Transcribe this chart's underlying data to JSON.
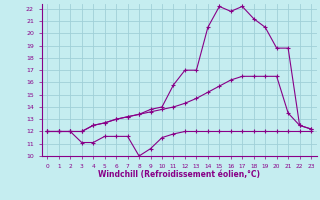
{
  "xlabel": "Windchill (Refroidissement éolien,°C)",
  "bg_color": "#c5edf0",
  "grid_color": "#a0d0d8",
  "line_color": "#880088",
  "xlim": [
    -0.5,
    23.5
  ],
  "ylim": [
    10,
    22.4
  ],
  "yticks": [
    10,
    11,
    12,
    13,
    14,
    15,
    16,
    17,
    18,
    19,
    20,
    21,
    22
  ],
  "xticks": [
    0,
    1,
    2,
    3,
    4,
    5,
    6,
    7,
    8,
    9,
    10,
    11,
    12,
    13,
    14,
    15,
    16,
    17,
    18,
    19,
    20,
    21,
    22,
    23
  ],
  "line1_x": [
    0,
    1,
    2,
    3,
    4,
    5,
    6,
    7,
    8,
    9,
    10,
    11,
    12,
    13,
    14,
    15,
    16,
    17,
    18,
    19,
    20,
    21,
    22,
    23
  ],
  "line1_y": [
    12.0,
    12.0,
    12.0,
    11.1,
    11.1,
    11.6,
    11.6,
    11.6,
    10.0,
    10.6,
    11.5,
    11.8,
    12.0,
    12.0,
    12.0,
    12.0,
    12.0,
    12.0,
    12.0,
    12.0,
    12.0,
    12.0,
    12.0,
    12.0
  ],
  "line2_x": [
    0,
    1,
    2,
    3,
    4,
    5,
    6,
    7,
    8,
    9,
    10,
    11,
    12,
    13,
    14,
    15,
    16,
    17,
    18,
    19,
    20,
    21,
    22,
    23
  ],
  "line2_y": [
    12.0,
    12.0,
    12.0,
    12.0,
    12.5,
    12.7,
    13.0,
    13.2,
    13.4,
    13.6,
    13.8,
    14.0,
    14.3,
    14.7,
    15.2,
    15.7,
    16.2,
    16.5,
    16.5,
    16.5,
    16.5,
    13.5,
    12.5,
    12.2
  ],
  "line3_x": [
    0,
    1,
    2,
    3,
    4,
    5,
    6,
    7,
    8,
    9,
    10,
    11,
    12,
    13,
    14,
    15,
    16,
    17,
    18,
    19,
    20,
    21,
    22,
    23
  ],
  "line3_y": [
    12.0,
    12.0,
    12.0,
    12.0,
    12.5,
    12.7,
    13.0,
    13.2,
    13.4,
    13.8,
    14.0,
    15.8,
    17.0,
    17.0,
    20.5,
    22.2,
    21.8,
    22.2,
    21.2,
    20.5,
    18.8,
    18.8,
    12.5,
    12.2
  ]
}
